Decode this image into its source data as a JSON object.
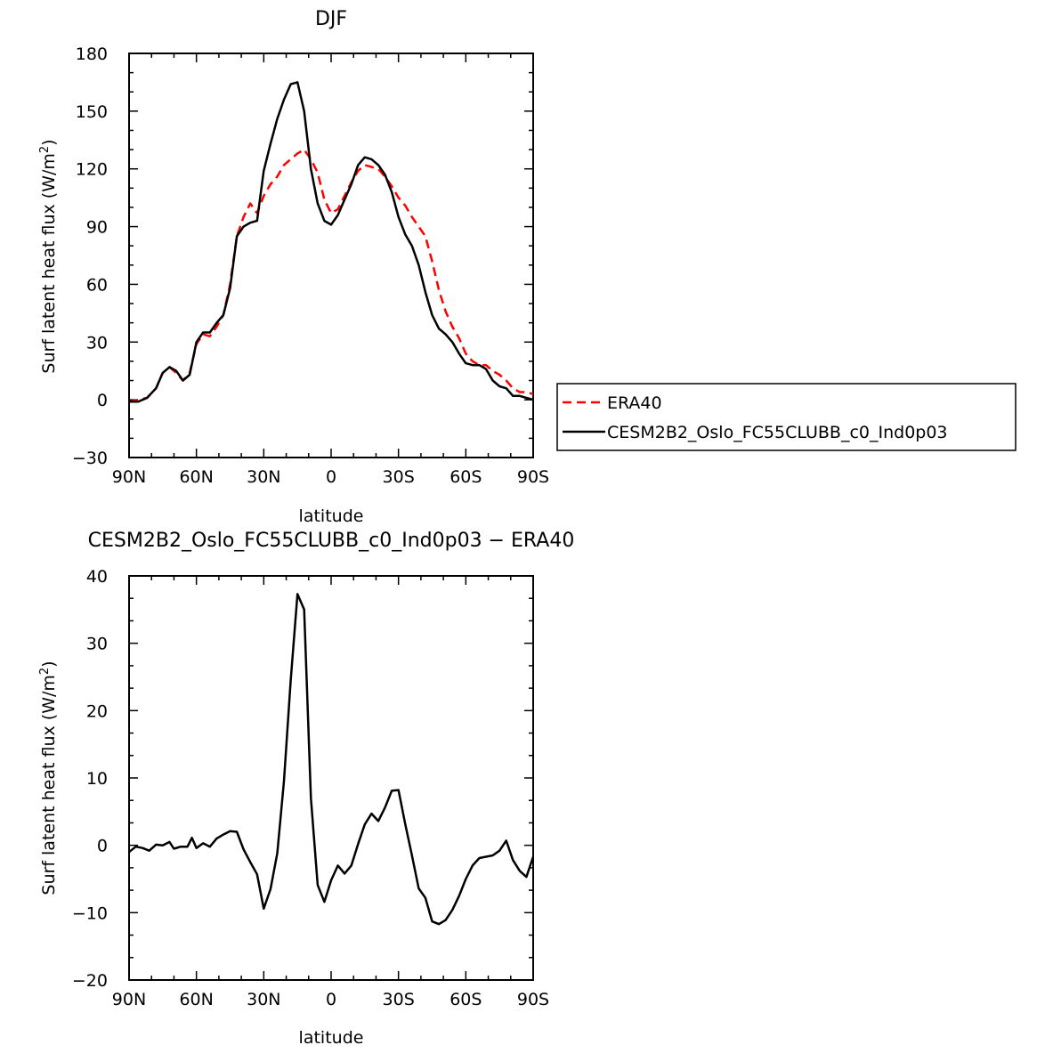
{
  "chart_data": [
    {
      "type": "line",
      "title": "DJF",
      "xlabel": "latitude",
      "ylabel": "Surf latent heat flux (W/m",
      "ylabel_sup": "2",
      "ylabel_end": ")",
      "xlim": [
        -90,
        90
      ],
      "ylim": [
        -30,
        180
      ],
      "xticks": [
        -90,
        -60,
        -30,
        0,
        30,
        60,
        90
      ],
      "xtick_labels": [
        "90N",
        "60N",
        "30N",
        "0",
        "30S",
        "60S",
        "90S"
      ],
      "yticks": [
        -30,
        0,
        30,
        60,
        90,
        120,
        150,
        180
      ],
      "ytick_labels": [
        "−30",
        "0",
        "30",
        "60",
        "90",
        "120",
        "150",
        "180"
      ],
      "grid": false,
      "legend_placement": "right",
      "series": [
        {
          "name": "ERA40",
          "color": "#ff0000",
          "dash": "dashed",
          "x": [
            -90,
            -86,
            -82,
            -78,
            -75,
            -72,
            -69,
            -66,
            -63,
            -60,
            -57,
            -54,
            -51,
            -48,
            -45,
            -42,
            -39,
            -36,
            -33,
            -30,
            -27,
            -24,
            -21,
            -18,
            -15,
            -12,
            -9,
            -6,
            -3,
            0,
            3,
            6,
            9,
            12,
            15,
            18,
            21,
            24,
            27,
            30,
            33,
            36,
            39,
            42,
            45,
            48,
            51,
            54,
            57,
            60,
            63,
            66,
            69,
            72,
            75,
            78,
            81,
            84,
            87,
            90
          ],
          "y": [
            -1,
            0,
            1,
            6,
            14,
            17,
            14,
            10,
            14,
            29,
            34,
            33,
            38,
            44,
            60,
            85,
            95,
            102,
            97,
            106,
            112,
            116,
            122,
            125,
            128,
            130,
            125,
            118,
            104,
            97,
            99,
            106,
            113,
            119,
            122,
            121,
            120,
            116,
            111,
            105,
            101,
            95,
            90,
            85,
            72,
            57,
            46,
            38,
            32,
            24,
            20,
            18,
            18,
            15,
            13,
            10,
            6,
            4,
            4,
            3
          ]
        },
        {
          "name": "CESM2B2_Oslo_FC55CLUBB_c0_Ind0p03",
          "color": "#000000",
          "dash": "solid",
          "x": [
            -90,
            -86,
            -82,
            -78,
            -75,
            -72,
            -69,
            -66,
            -63,
            -60,
            -57,
            -54,
            -51,
            -48,
            -45,
            -42,
            -39,
            -36,
            -33,
            -30,
            -27,
            -24,
            -21,
            -18,
            -15,
            -12,
            -9,
            -6,
            -3,
            0,
            3,
            6,
            9,
            12,
            15,
            18,
            21,
            24,
            27,
            30,
            33,
            36,
            39,
            42,
            45,
            48,
            51,
            54,
            57,
            60,
            63,
            66,
            69,
            72,
            75,
            78,
            81,
            84,
            87,
            90
          ],
          "y": [
            -1,
            -1,
            1,
            6,
            14,
            17,
            15,
            10,
            13,
            30,
            35,
            35,
            40,
            44,
            58,
            85,
            90,
            92,
            93,
            119,
            133,
            146,
            156,
            164,
            165,
            150,
            120,
            102,
            93,
            91,
            96,
            104,
            112,
            122,
            126,
            125,
            122,
            117,
            108,
            95,
            86,
            80,
            70,
            56,
            44,
            37,
            34,
            30,
            24,
            19,
            18,
            18,
            16,
            10,
            7,
            6,
            2,
            2,
            1,
            0
          ]
        }
      ],
      "legend": [
        {
          "label": "ERA40",
          "color": "#ff0000",
          "dash": "dashed"
        },
        {
          "label": "CESM2B2_Oslo_FC55CLUBB_c0_Ind0p03",
          "color": "#000000",
          "dash": "solid"
        }
      ]
    },
    {
      "type": "line",
      "title": "CESM2B2_Oslo_FC55CLUBB_c0_Ind0p03 − ERA40",
      "xlabel": "latitude",
      "ylabel": "Surf latent heat flux (W/m",
      "ylabel_sup": "2",
      "ylabel_end": ")",
      "xlim": [
        -90,
        90
      ],
      "ylim": [
        -20,
        40
      ],
      "xticks": [
        -90,
        -60,
        -30,
        0,
        30,
        60,
        90
      ],
      "xtick_labels": [
        "90N",
        "60N",
        "30N",
        "0",
        "30S",
        "60S",
        "90S"
      ],
      "yticks": [
        -20,
        -10,
        0,
        10,
        20,
        30,
        40
      ],
      "ytick_labels": [
        "−20",
        "−10",
        "0",
        "10",
        "20",
        "30",
        "40"
      ],
      "grid": false,
      "series": [
        {
          "color": "#000000",
          "dash": "solid",
          "x": [
            -90,
            -87,
            -84,
            -81,
            -78,
            -75,
            -72,
            -70,
            -67,
            -64,
            -62,
            -60,
            -57,
            -54,
            -51,
            -48,
            -45,
            -42,
            -39,
            -36,
            -33,
            -30,
            -27,
            -24,
            -21,
            -18,
            -15,
            -12,
            -9,
            -6,
            -3,
            0,
            3,
            6,
            9,
            12,
            15,
            18,
            21,
            24,
            27,
            30,
            33,
            36,
            39,
            42,
            45,
            48,
            51,
            54,
            57,
            60,
            63,
            66,
            69,
            72,
            75,
            78,
            81,
            84,
            87,
            90
          ],
          "y": [
            -1,
            -0.2,
            -0.4,
            -0.8,
            0.1,
            0,
            0.5,
            -0.5,
            -0.2,
            -0.2,
            1.1,
            -0.4,
            0.3,
            -0.2,
            1,
            1.6,
            2.1,
            2,
            -0.6,
            -2.5,
            -4.3,
            -9.4,
            -6.5,
            -1.2,
            9.5,
            24.5,
            37.3,
            35,
            7,
            -5.9,
            -8.4,
            -5.2,
            -3,
            -4.2,
            -3,
            0.2,
            3.1,
            4.7,
            3.6,
            5.6,
            8.1,
            8.2,
            3.2,
            -1.5,
            -6.4,
            -7.8,
            -11.3,
            -11.7,
            -11.1,
            -9.6,
            -7.5,
            -5,
            -3,
            -1.9,
            -1.7,
            -1.5,
            -0.8,
            0.7,
            -2.2,
            -3.8,
            -4.7,
            -1.7
          ]
        }
      ]
    }
  ]
}
